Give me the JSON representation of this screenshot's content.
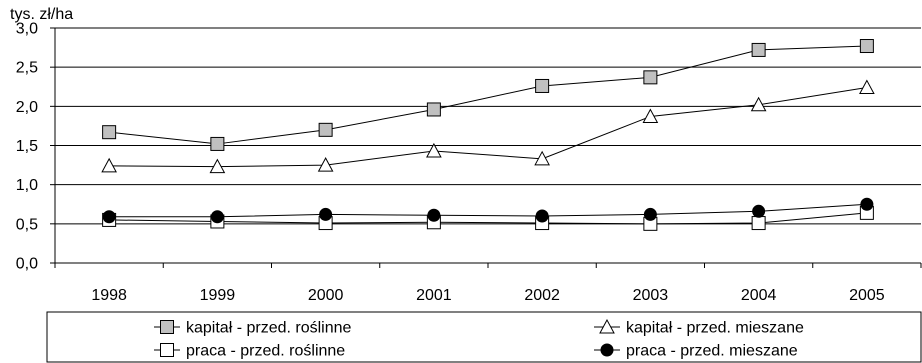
{
  "chart_data": {
    "type": "line",
    "ylabel": "tys. zł/ha",
    "categories": [
      "1998",
      "1999",
      "2000",
      "2001",
      "2002",
      "2003",
      "2004",
      "2005"
    ],
    "ylim": [
      0,
      3.0
    ],
    "yticks": [
      "0,0",
      "0,5",
      "1,0",
      "1,5",
      "2,0",
      "2,5",
      "3,0"
    ],
    "grid": true,
    "legend_position": "bottom",
    "series": [
      {
        "name": "kapitał - przed. roślinne",
        "marker": "square-filled",
        "color": "#c0c0c0",
        "values": [
          1.67,
          1.52,
          1.7,
          1.96,
          2.26,
          2.37,
          2.72,
          2.77
        ]
      },
      {
        "name": "kapitał - przed. mieszane",
        "marker": "triangle-open",
        "color": "#ffffff",
        "values": [
          1.24,
          1.23,
          1.25,
          1.43,
          1.33,
          1.87,
          2.02,
          2.24
        ]
      },
      {
        "name": "praca - przed. roślinne",
        "marker": "square-open",
        "color": "#ffffff",
        "values": [
          0.55,
          0.53,
          0.51,
          0.52,
          0.51,
          0.5,
          0.51,
          0.64
        ]
      },
      {
        "name": "praca - przed. mieszane",
        "marker": "circle-filled",
        "color": "#000000",
        "values": [
          0.59,
          0.59,
          0.62,
          0.61,
          0.6,
          0.62,
          0.66,
          0.75
        ]
      }
    ]
  }
}
